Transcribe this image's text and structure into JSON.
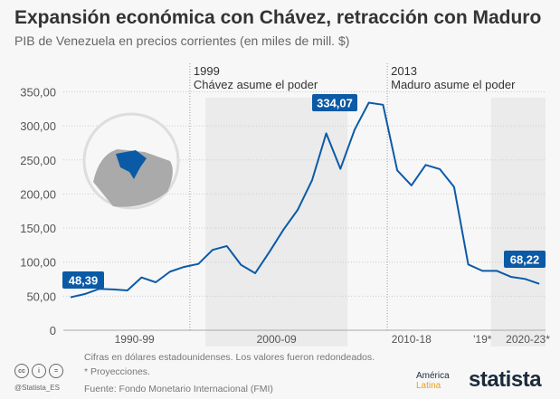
{
  "header": {
    "title": "Expansión económica con Chávez, retracción con Maduro",
    "subtitle": "PIB de Venezuela en precios corrientes (en miles de mill. $)"
  },
  "chart_data": {
    "type": "line",
    "title": "Expansión económica con Chávez, retracción con Maduro",
    "subtitle": "PIB de Venezuela en precios corrientes (en miles de mill. $)",
    "x": [
      1990,
      1991,
      1992,
      1993,
      1994,
      1995,
      1996,
      1997,
      1998,
      1999,
      2000,
      2001,
      2002,
      2003,
      2004,
      2005,
      2006,
      2007,
      2008,
      2009,
      2010,
      2011,
      2012,
      2013,
      2014,
      2015,
      2016,
      2017,
      2018,
      2019,
      2020,
      2021,
      2022,
      2023
    ],
    "values": [
      48.39,
      53.1,
      60.7,
      60,
      58.5,
      77.5,
      70.4,
      86,
      93,
      97.4,
      118,
      123.6,
      96,
      83.7,
      115,
      148,
      177,
      220,
      289,
      237,
      294.5,
      334.07,
      331,
      234.7,
      212.6,
      242.7,
      236.5,
      210.4,
      96.5,
      87.2,
      87.2,
      78.4,
      75.3,
      68.22
    ],
    "ylim": [
      0,
      350
    ],
    "yticks": [
      "0",
      "50,00",
      "100,00",
      "150,00",
      "200,00",
      "250,00",
      "300,00",
      "350,00"
    ],
    "xlabels": [
      "1990-99",
      "2000-09",
      "2010-18",
      "'19*",
      "2020-23*"
    ],
    "grid": true,
    "color": "#0b5aa6",
    "data_labels": [
      {
        "index": 0,
        "text": "48,39"
      },
      {
        "index": 21,
        "text": "334,07"
      },
      {
        "index": 33,
        "text": "68,22"
      }
    ],
    "annotations": [
      {
        "year": "1999",
        "text": "Chávez asume el poder"
      },
      {
        "year": "2013",
        "text": "Maduro asume el poder"
      }
    ]
  },
  "footer": {
    "note1": "Cifras en dólares estadounidenses. Los valores fueron redondeados.",
    "note2": "* Proyecciones.",
    "source": "Fuente: Fondo Monetario Internacional (FMI)",
    "handle": "@Statista_ES",
    "brand": "statista",
    "partner1": "América",
    "partner2": "Latina"
  }
}
